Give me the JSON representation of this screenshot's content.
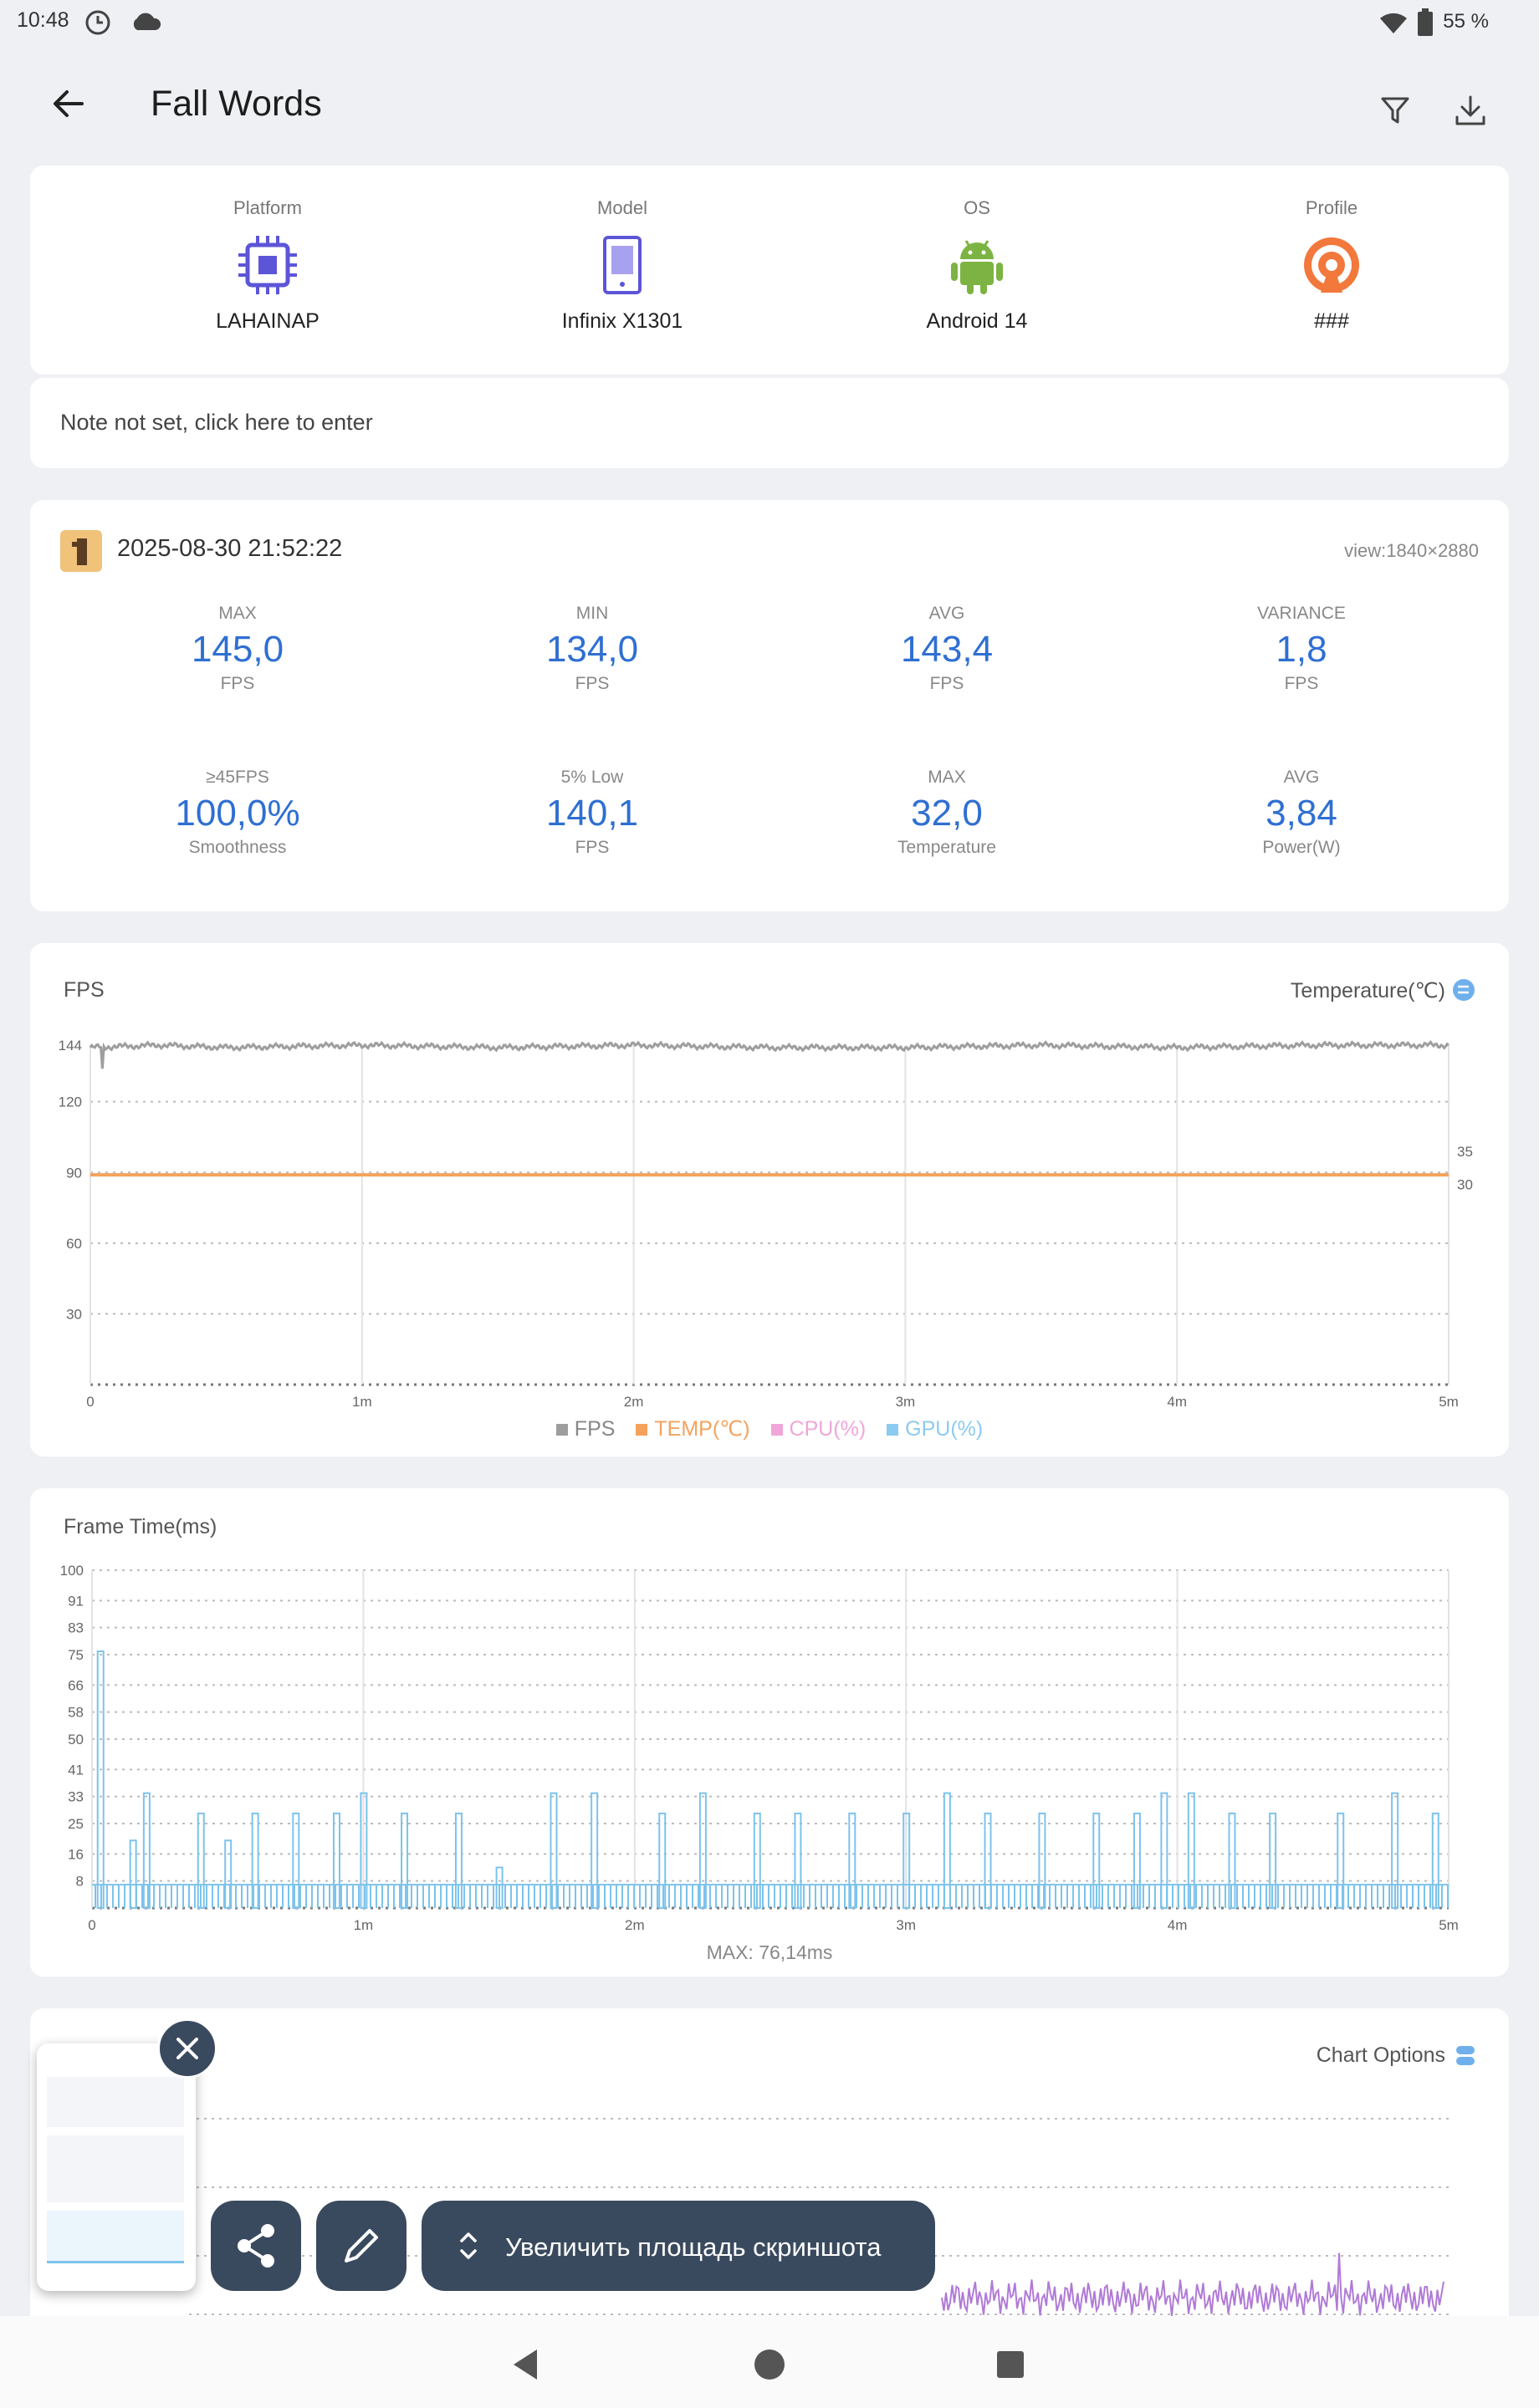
{
  "status_bar": {
    "time": "10:48",
    "battery": "55 %"
  },
  "app_bar": {
    "title": "Fall Words"
  },
  "device": {
    "platform": {
      "label": "Platform",
      "value": "LAHAINAP"
    },
    "model": {
      "label": "Model",
      "value": "Infinix X1301"
    },
    "os": {
      "label": "OS",
      "value": "Android 14"
    },
    "profile": {
      "label": "Profile",
      "value": "###"
    }
  },
  "note": {
    "placeholder": "Note not set, click here to enter"
  },
  "session": {
    "datetime": "2025-08-30 21:52:22",
    "view": "view:1840×2880",
    "metrics": [
      {
        "top": "MAX",
        "value": "145,0",
        "bottom": "FPS"
      },
      {
        "top": "MIN",
        "value": "134,0",
        "bottom": "FPS"
      },
      {
        "top": "AVG",
        "value": "143,4",
        "bottom": "FPS"
      },
      {
        "top": "VARIANCE",
        "value": "1,8",
        "bottom": "FPS"
      },
      {
        "top": "≥45FPS",
        "value": "100,0%",
        "bottom": "Smoothness"
      },
      {
        "top": "5% Low",
        "value": "140,1",
        "bottom": "FPS"
      },
      {
        "top": "MAX",
        "value": "32,0",
        "bottom": "Temperature"
      },
      {
        "top": "AVG",
        "value": "3,84",
        "bottom": "Power(W)"
      }
    ]
  },
  "fps_chart": {
    "title": "FPS",
    "right_label": "Temperature(℃)",
    "legend": [
      "FPS",
      "TEMP(℃)",
      "CPU(%)",
      "GPU(%)"
    ]
  },
  "frametime_chart": {
    "title": "Frame Time(ms)",
    "max_label": "MAX: 76,14ms"
  },
  "third_chart": {
    "options_label": "Chart Options"
  },
  "screenshot_toolbar": {
    "expand_label": "Увеличить площадь скриншота"
  },
  "colors": {
    "accent": "#2f6fd2",
    "fps": "#9e9e9e",
    "temp": "#f5a25d",
    "cpu": "#f0a6d9",
    "gpu": "#8ccbf0",
    "frametime": "#7cc3ec",
    "purple": "#b07ad6"
  },
  "chart_data": [
    {
      "type": "line",
      "title": "FPS",
      "xlabel": "",
      "ylabel": "",
      "x_ticks": [
        "0",
        "1m",
        "2m",
        "3m",
        "4m",
        "5m"
      ],
      "y_ticks": [
        30,
        60,
        90,
        120,
        144
      ],
      "y_right_ticks": [
        30,
        35
      ],
      "xlim_min": [
        0,
        5
      ],
      "ylim": [
        0,
        144
      ],
      "series": [
        {
          "name": "FPS",
          "x_min": [
            0,
            0.25,
            0.5,
            1,
            1.5,
            2,
            2.5,
            3,
            3.5,
            4,
            4.5,
            5
          ],
          "values": [
            143,
            144,
            143,
            144,
            143,
            144,
            143,
            143,
            144,
            143,
            144,
            144
          ]
        },
        {
          "name": "TEMP(℃)",
          "x_min": [
            0,
            5
          ],
          "values": [
            32,
            32
          ]
        }
      ],
      "legend": "bottom"
    },
    {
      "type": "bar",
      "title": "Frame Time(ms)",
      "x_ticks": [
        "0",
        "1m",
        "2m",
        "3m",
        "4m",
        "5m"
      ],
      "y_ticks": [
        8,
        16,
        25,
        33,
        41,
        50,
        58,
        66,
        75,
        83,
        91,
        100
      ],
      "xlim_min": [
        0,
        5
      ],
      "ylim": [
        0,
        100
      ],
      "baseline_ms": 6.9,
      "spikes": [
        {
          "x_min": 0.03,
          "ms": 76
        },
        {
          "x_min": 0.15,
          "ms": 20
        },
        {
          "x_min": 0.2,
          "ms": 34
        },
        {
          "x_min": 0.4,
          "ms": 28
        },
        {
          "x_min": 0.5,
          "ms": 20
        },
        {
          "x_min": 0.6,
          "ms": 28
        },
        {
          "x_min": 0.75,
          "ms": 28
        },
        {
          "x_min": 0.9,
          "ms": 28
        },
        {
          "x_min": 1.0,
          "ms": 34
        },
        {
          "x_min": 1.15,
          "ms": 28
        },
        {
          "x_min": 1.35,
          "ms": 28
        },
        {
          "x_min": 1.5,
          "ms": 12
        },
        {
          "x_min": 1.7,
          "ms": 34
        },
        {
          "x_min": 1.85,
          "ms": 34
        },
        {
          "x_min": 2.1,
          "ms": 28
        },
        {
          "x_min": 2.25,
          "ms": 34
        },
        {
          "x_min": 2.45,
          "ms": 28
        },
        {
          "x_min": 2.6,
          "ms": 28
        },
        {
          "x_min": 2.8,
          "ms": 28
        },
        {
          "x_min": 3.0,
          "ms": 28
        },
        {
          "x_min": 3.15,
          "ms": 34
        },
        {
          "x_min": 3.3,
          "ms": 28
        },
        {
          "x_min": 3.5,
          "ms": 28
        },
        {
          "x_min": 3.7,
          "ms": 28
        },
        {
          "x_min": 3.85,
          "ms": 28
        },
        {
          "x_min": 3.95,
          "ms": 34
        },
        {
          "x_min": 4.05,
          "ms": 34
        },
        {
          "x_min": 4.2,
          "ms": 28
        },
        {
          "x_min": 4.35,
          "ms": 28
        },
        {
          "x_min": 4.6,
          "ms": 28
        },
        {
          "x_min": 4.8,
          "ms": 34
        },
        {
          "x_min": 4.95,
          "ms": 28
        }
      ],
      "annotation": "MAX: 76,14ms"
    }
  ]
}
